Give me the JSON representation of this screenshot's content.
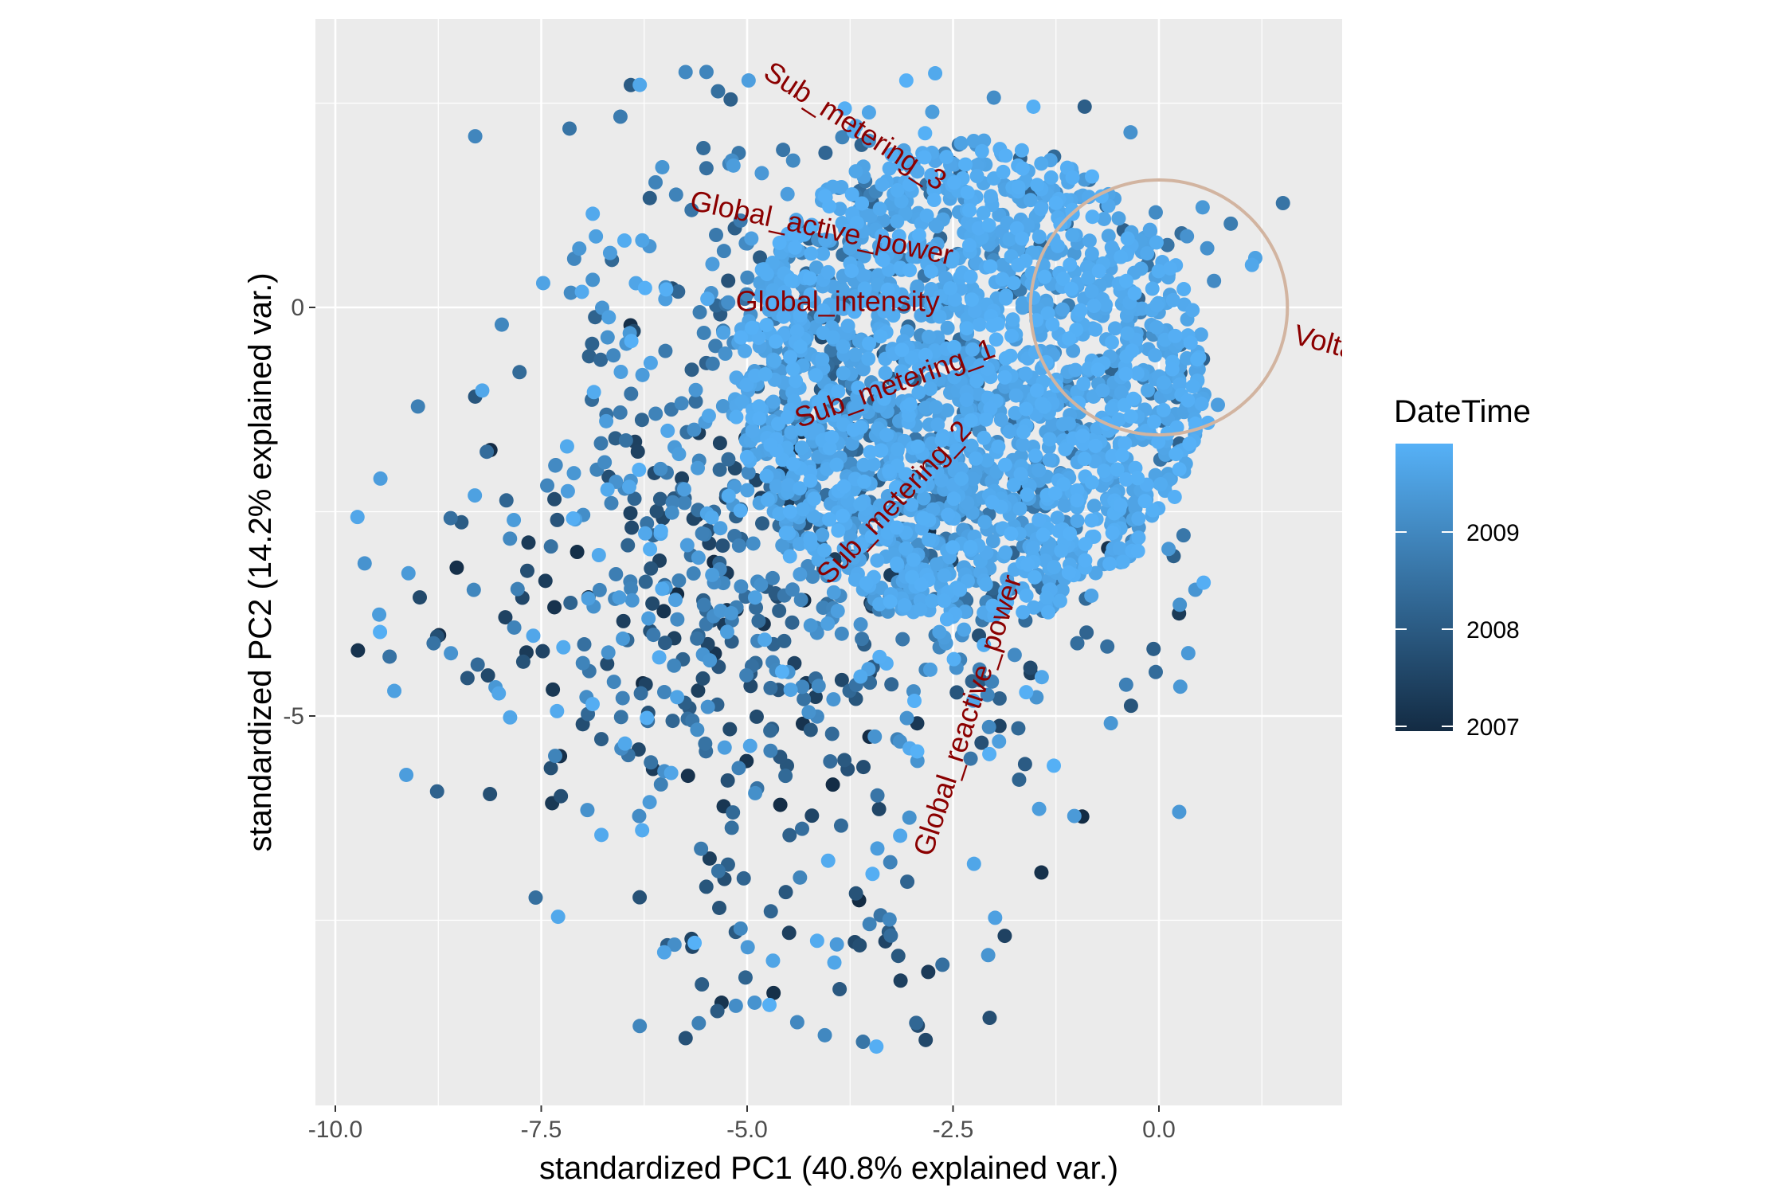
{
  "chart_data": {
    "type": "scatter",
    "xlabel": "standardized PC1 (40.8% explained var.)",
    "ylabel": "standardized PC2 (14.2% explained var.)",
    "xlim": [
      -10.4,
      4.4
    ],
    "ylim": [
      -9.8,
      3.5
    ],
    "x_ticks": [
      -10.0,
      -7.5,
      -5.0,
      -2.5,
      0.0
    ],
    "x_tick_labels": [
      "-10.0",
      "-7.5",
      "-5.0",
      "-2.5",
      "0.0"
    ],
    "y_ticks": [
      0,
      -5
    ],
    "y_tick_labels": [
      "0",
      "-5"
    ],
    "grid": true,
    "panel_background": "#ebebeb",
    "point_color_low": "#132b43",
    "point_color_high": "#56b1f7",
    "circle_color": "#d2b4a0",
    "variable_label_color": "#8b0000",
    "legend": {
      "title": "DateTime",
      "position": "right",
      "labels": [
        "2009",
        "2008",
        "2007"
      ]
    },
    "correlation_circle": {
      "center": [
        0,
        0
      ],
      "radius": 1.56
    },
    "variables": [
      {
        "name": "Sub_metering_3",
        "x": -3.7,
        "y": 2.2,
        "angle": 33
      },
      {
        "name": "Global_active_power",
        "x": -4.1,
        "y": 0.95,
        "angle": 12
      },
      {
        "name": "Global_intensity",
        "x": -3.9,
        "y": 0.05,
        "angle": 0
      },
      {
        "name": "Voltage",
        "x": 2.2,
        "y": -0.5,
        "angle": 15
      },
      {
        "name": "Sub_metering_1",
        "x": -3.2,
        "y": -0.95,
        "angle": -20
      },
      {
        "name": "Sub_metering_2",
        "x": -3.2,
        "y": -2.4,
        "angle": -47
      },
      {
        "name": "Global_reactive_power",
        "x": -2.3,
        "y": -5.0,
        "angle": -72
      }
    ]
  }
}
